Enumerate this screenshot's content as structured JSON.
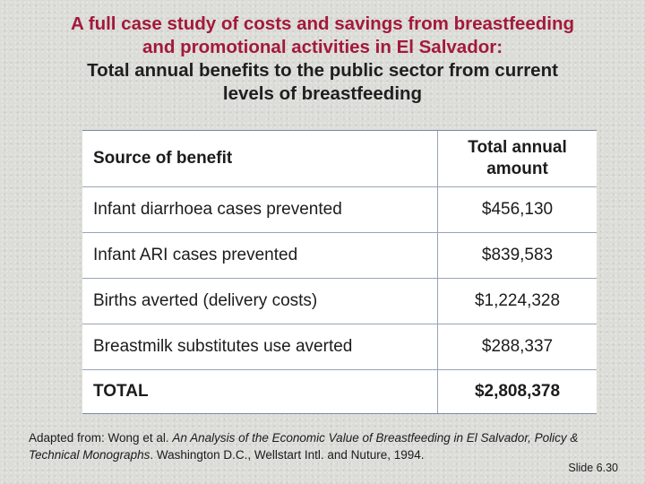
{
  "title": {
    "line1": "A full case study of costs and savings from breastfeeding",
    "line2": "and promotional activities in El Salvador:",
    "line3": "Total annual benefits to the public sector from current",
    "line4": "levels of breastfeeding"
  },
  "table": {
    "header": {
      "source": "Source of benefit",
      "amount_line1": "Total annual",
      "amount_line2": "amount"
    },
    "rows": [
      {
        "source": "Infant diarrhoea cases prevented",
        "amount": "$456,130"
      },
      {
        "source": "Infant ARI cases prevented",
        "amount": "$839,583"
      },
      {
        "source": "Births averted (delivery costs)",
        "amount": "$1,224,328"
      },
      {
        "source": "Breastmilk substitutes use averted",
        "amount": "$288,337"
      }
    ],
    "total": {
      "source": "TOTAL",
      "amount": "$2,808,378"
    }
  },
  "footer": {
    "prefix": "Adapted from: Wong et al. ",
    "italic_title": "An Analysis of the Economic Value of Breastfeeding in El Salvador, Policy & Technical Monographs",
    "suffix": ". Washington D.C., Wellstart Intl. and Nuture, 1994.",
    "slide_number": "Slide 6.30"
  },
  "colors": {
    "title_accent": "#a3193a",
    "title_dark": "#1f1f1f",
    "background": "#dcdcd8",
    "table_border": "#98a4b8"
  }
}
